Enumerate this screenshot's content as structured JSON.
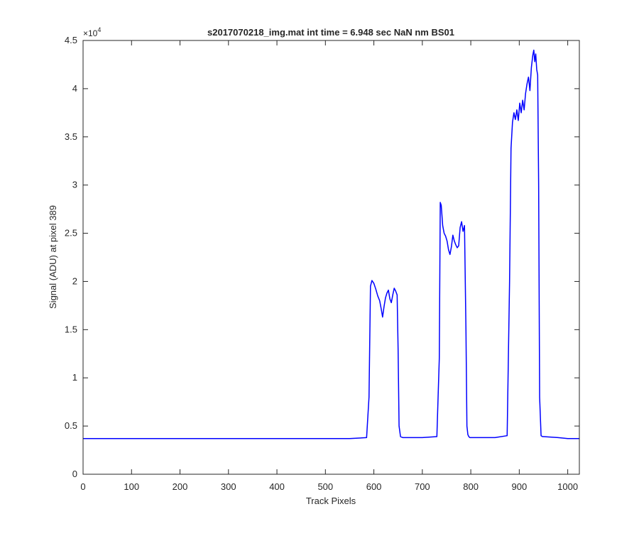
{
  "chart_data": {
    "type": "line",
    "title": "s2017070218_img.mat int time = 6.948 sec  NaN nm BS01",
    "xlabel": "Track Pixels",
    "ylabel": "Signal (ADU) at pixel 389",
    "y_exponent_label": "×10",
    "y_exponent_power": "4",
    "xlim": [
      0,
      1024
    ],
    "ylim": [
      0,
      45000
    ],
    "x_ticks": [
      0,
      100,
      200,
      300,
      400,
      500,
      600,
      700,
      800,
      900,
      1000
    ],
    "y_ticks": [
      0,
      5000,
      10000,
      15000,
      20000,
      25000,
      30000,
      35000,
      40000,
      45000
    ],
    "x_tick_labels": [
      "0",
      "100",
      "200",
      "300",
      "400",
      "500",
      "600",
      "700",
      "800",
      "900",
      "1000"
    ],
    "y_tick_labels": [
      "0",
      "0.5",
      "1",
      "1.5",
      "2",
      "2.5",
      "3",
      "3.5",
      "4",
      "4.5"
    ],
    "grid": false,
    "line_color": "#0000ff",
    "series": [
      {
        "x": [
          0,
          50,
          100,
          150,
          200,
          250,
          300,
          350,
          400,
          450,
          500,
          550,
          585,
          590,
          593,
          596,
          600,
          604,
          608,
          612,
          615,
          618,
          621,
          624,
          627,
          630,
          633,
          636,
          639,
          642,
          645,
          648,
          650,
          652,
          655,
          660,
          700,
          730,
          735,
          737,
          739,
          742,
          745,
          748,
          751,
          754,
          757,
          760,
          763,
          766,
          769,
          772,
          775,
          778,
          781,
          784,
          787,
          790,
          792,
          794,
          796,
          798,
          800,
          820,
          850,
          875,
          880,
          883,
          886,
          889,
          892,
          895,
          898,
          901,
          904,
          907,
          910,
          913,
          916,
          919,
          922,
          925,
          928,
          930,
          932,
          934,
          936,
          938,
          940,
          942,
          945,
          948,
          950,
          980,
          1000,
          1024
        ],
        "values": [
          3700,
          3700,
          3700,
          3700,
          3700,
          3700,
          3700,
          3700,
          3700,
          3700,
          3700,
          3700,
          3800,
          8000,
          19500,
          20100,
          19800,
          19200,
          18500,
          18000,
          17200,
          16300,
          17400,
          18300,
          18800,
          19100,
          18200,
          17800,
          18600,
          19300,
          19000,
          18600,
          13000,
          5000,
          3900,
          3800,
          3800,
          3900,
          12000,
          28200,
          27900,
          25800,
          25000,
          24700,
          24200,
          23300,
          22800,
          23600,
          24800,
          24200,
          23800,
          23500,
          23700,
          25600,
          26200,
          25200,
          25800,
          15000,
          5000,
          4100,
          3900,
          3800,
          3800,
          3800,
          3800,
          4000,
          20000,
          33800,
          36500,
          37500,
          36800,
          37800,
          36700,
          38500,
          37500,
          38800,
          37800,
          39500,
          40500,
          41200,
          39800,
          42200,
          43500,
          44000,
          42800,
          43600,
          42000,
          41400,
          30000,
          8000,
          4000,
          3900,
          3900,
          3800,
          3700,
          3700
        ]
      }
    ]
  }
}
